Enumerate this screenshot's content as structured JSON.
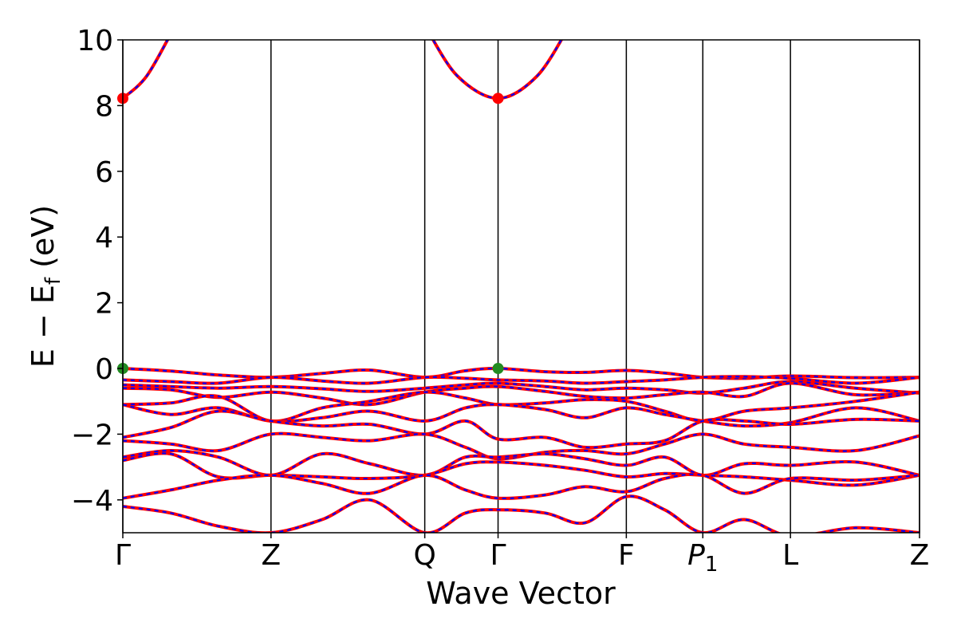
{
  "chart_data": {
    "type": "line",
    "title": "",
    "xlabel": "Wave Vector",
    "ylabel": {
      "main": "E − E",
      "sub": "f",
      "unit": " (eV)"
    },
    "ylim": [
      -5,
      10
    ],
    "yticks": [
      10,
      8,
      6,
      4,
      2,
      0,
      -2,
      -4
    ],
    "ytick_labels": [
      "10",
      "8",
      "6",
      "4",
      "2",
      "0",
      "−2",
      "−4"
    ],
    "xlim": [
      0,
      1
    ],
    "kpoints": [
      {
        "label": "Γ",
        "sub": "",
        "x": 0.0
      },
      {
        "label": "Z",
        "sub": "",
        "x": 0.186
      },
      {
        "label": "Q",
        "sub": "",
        "x": 0.379
      },
      {
        "label": "Γ",
        "sub": "",
        "x": 0.471
      },
      {
        "label": "F",
        "sub": "",
        "x": 0.632
      },
      {
        "label": "P",
        "sub": "1",
        "x": 0.728
      },
      {
        "label": "L",
        "sub": "",
        "x": 0.838
      },
      {
        "label": "Z",
        "sub": "",
        "x": 1.0
      }
    ],
    "line_style": {
      "color_main": "#ff0000",
      "color_dash": "#0000ff"
    },
    "markers": [
      {
        "name": "CBM",
        "x": 0.0,
        "y": 8.22,
        "color": "#ff0000"
      },
      {
        "name": "CBM",
        "x": 0.471,
        "y": 8.22,
        "color": "#ff0000"
      },
      {
        "name": "VBM",
        "x": 0.0,
        "y": 0.0,
        "color": "#228b22"
      },
      {
        "name": "VBM",
        "x": 0.471,
        "y": 0.0,
        "color": "#228b22"
      }
    ],
    "series": [
      {
        "x": [
          0,
          0.03,
          0.065
        ],
        "y": [
          8.22,
          8.9,
          10.4
        ]
      },
      {
        "x": [
          0.38,
          0.42,
          0.471,
          0.52,
          0.56
        ],
        "y": [
          10.4,
          8.9,
          8.22,
          8.9,
          10.4
        ]
      },
      {
        "x": [
          0,
          0.06,
          0.12,
          0.186,
          0.25,
          0.31,
          0.379,
          0.43,
          0.471,
          0.53,
          0.58,
          0.632,
          0.68,
          0.728,
          0.78,
          0.838,
          0.92,
          1.0
        ],
        "y": [
          0.0,
          -0.08,
          -0.2,
          -0.27,
          -0.15,
          -0.05,
          -0.27,
          -0.07,
          0.0,
          -0.1,
          -0.12,
          -0.06,
          -0.14,
          -0.27,
          -0.3,
          -0.23,
          -0.28,
          -0.27
        ]
      },
      {
        "x": [
          0,
          0.06,
          0.12,
          0.186,
          0.25,
          0.31,
          0.379,
          0.43,
          0.471,
          0.53,
          0.58,
          0.632,
          0.68,
          0.728,
          0.78,
          0.838,
          0.92,
          1.0
        ],
        "y": [
          -0.35,
          -0.4,
          -0.45,
          -0.27,
          -0.38,
          -0.45,
          -0.27,
          -0.3,
          -0.35,
          -0.38,
          -0.45,
          -0.4,
          -0.35,
          -0.27,
          -0.25,
          -0.3,
          -0.45,
          -0.27
        ]
      },
      {
        "x": [
          0,
          0.06,
          0.12,
          0.186,
          0.25,
          0.31,
          0.379,
          0.43,
          0.471,
          0.53,
          0.58,
          0.632,
          0.68,
          0.728,
          0.78,
          0.838,
          0.92,
          1.0
        ],
        "y": [
          -0.5,
          -0.55,
          -0.6,
          -0.55,
          -0.62,
          -0.7,
          -0.6,
          -0.5,
          -0.45,
          -0.55,
          -0.65,
          -0.6,
          -0.65,
          -0.75,
          -0.6,
          -0.4,
          -0.6,
          -0.75
        ]
      },
      {
        "x": [
          0,
          0.06,
          0.12,
          0.186,
          0.25,
          0.31,
          0.379,
          0.43,
          0.471,
          0.53,
          0.58,
          0.632,
          0.68,
          0.728,
          0.78,
          0.838,
          0.92,
          1.0
        ],
        "y": [
          -0.6,
          -0.65,
          -0.88,
          -0.72,
          -0.9,
          -1.1,
          -0.72,
          -0.6,
          -0.55,
          -0.7,
          -0.85,
          -0.9,
          -0.8,
          -0.72,
          -0.85,
          -0.45,
          -0.8,
          -0.72
        ]
      },
      {
        "x": [
          0,
          0.06,
          0.12,
          0.186,
          0.25,
          0.31,
          0.379,
          0.43,
          0.471,
          0.53,
          0.58,
          0.632,
          0.68,
          0.728,
          0.78,
          0.838,
          0.92,
          1.0
        ],
        "y": [
          -1.1,
          -1.05,
          -0.85,
          -1.6,
          -1.2,
          -1.0,
          -0.72,
          -0.9,
          -1.1,
          -1.05,
          -0.95,
          -1.0,
          -1.3,
          -1.6,
          -1.3,
          -1.2,
          -1.0,
          -0.72
        ]
      },
      {
        "x": [
          0,
          0.06,
          0.12,
          0.186,
          0.25,
          0.31,
          0.379,
          0.43,
          0.471,
          0.53,
          0.58,
          0.632,
          0.68,
          0.728,
          0.78,
          0.838,
          0.92,
          1.0
        ],
        "y": [
          -1.1,
          -1.4,
          -1.2,
          -1.6,
          -1.5,
          -1.3,
          -1.6,
          -1.2,
          -1.1,
          -1.25,
          -1.5,
          -1.2,
          -1.4,
          -1.6,
          -1.75,
          -1.65,
          -1.2,
          -1.6
        ]
      },
      {
        "x": [
          0,
          0.06,
          0.12,
          0.186,
          0.25,
          0.31,
          0.379,
          0.43,
          0.471,
          0.53,
          0.58,
          0.632,
          0.68,
          0.728,
          0.78,
          0.838,
          0.92,
          1.0
        ],
        "y": [
          -2.1,
          -1.8,
          -1.3,
          -1.6,
          -1.75,
          -1.7,
          -2.0,
          -1.6,
          -2.15,
          -2.1,
          -2.4,
          -2.3,
          -2.2,
          -1.6,
          -1.6,
          -1.7,
          -1.55,
          -1.6
        ]
      },
      {
        "x": [
          0,
          0.06,
          0.12,
          0.186,
          0.25,
          0.31,
          0.379,
          0.43,
          0.471,
          0.53,
          0.58,
          0.632,
          0.68,
          0.728,
          0.78,
          0.838,
          0.92,
          1.0
        ],
        "y": [
          -2.2,
          -2.3,
          -2.5,
          -2.0,
          -2.1,
          -2.2,
          -2.0,
          -2.4,
          -2.75,
          -2.55,
          -2.5,
          -2.6,
          -2.3,
          -2.0,
          -2.3,
          -2.4,
          -2.5,
          -2.05
        ]
      },
      {
        "x": [
          0,
          0.06,
          0.12,
          0.186,
          0.25,
          0.31,
          0.379,
          0.43,
          0.471,
          0.53,
          0.58,
          0.632,
          0.68,
          0.728,
          0.78,
          0.838,
          0.92,
          1.0
        ],
        "y": [
          -2.7,
          -2.5,
          -2.7,
          -3.25,
          -2.6,
          -2.9,
          -3.25,
          -2.7,
          -2.7,
          -2.6,
          -2.75,
          -2.95,
          -2.7,
          -3.25,
          -2.9,
          -2.95,
          -2.85,
          -3.25
        ]
      },
      {
        "x": [
          0,
          0.06,
          0.12,
          0.186,
          0.25,
          0.31,
          0.379,
          0.43,
          0.471,
          0.53,
          0.58,
          0.632,
          0.68,
          0.728,
          0.78,
          0.838,
          0.92,
          1.0
        ],
        "y": [
          -2.8,
          -2.6,
          -3.3,
          -3.25,
          -3.3,
          -3.35,
          -3.25,
          -2.9,
          -2.85,
          -2.95,
          -3.1,
          -3.3,
          -3.2,
          -3.25,
          -3.3,
          -3.4,
          -3.55,
          -3.25
        ]
      },
      {
        "x": [
          0,
          0.06,
          0.12,
          0.186,
          0.25,
          0.31,
          0.379,
          0.43,
          0.471,
          0.53,
          0.58,
          0.632,
          0.68,
          0.728,
          0.78,
          0.838,
          0.92,
          1.0
        ],
        "y": [
          -3.95,
          -3.7,
          -3.4,
          -3.25,
          -3.5,
          -3.8,
          -3.25,
          -3.7,
          -3.95,
          -3.85,
          -3.6,
          -3.75,
          -3.35,
          -3.25,
          -3.8,
          -3.35,
          -3.4,
          -3.25
        ]
      },
      {
        "x": [
          0,
          0.06,
          0.12,
          0.186,
          0.25,
          0.31,
          0.379,
          0.43,
          0.471,
          0.53,
          0.58,
          0.632,
          0.68,
          0.728,
          0.78,
          0.838,
          0.92,
          1.0
        ],
        "y": [
          -4.2,
          -4.4,
          -4.8,
          -5.0,
          -4.6,
          -4.0,
          -5.0,
          -4.4,
          -4.3,
          -4.4,
          -4.7,
          -3.9,
          -4.3,
          -5.0,
          -4.6,
          -5.1,
          -4.85,
          -5.0
        ]
      }
    ]
  }
}
